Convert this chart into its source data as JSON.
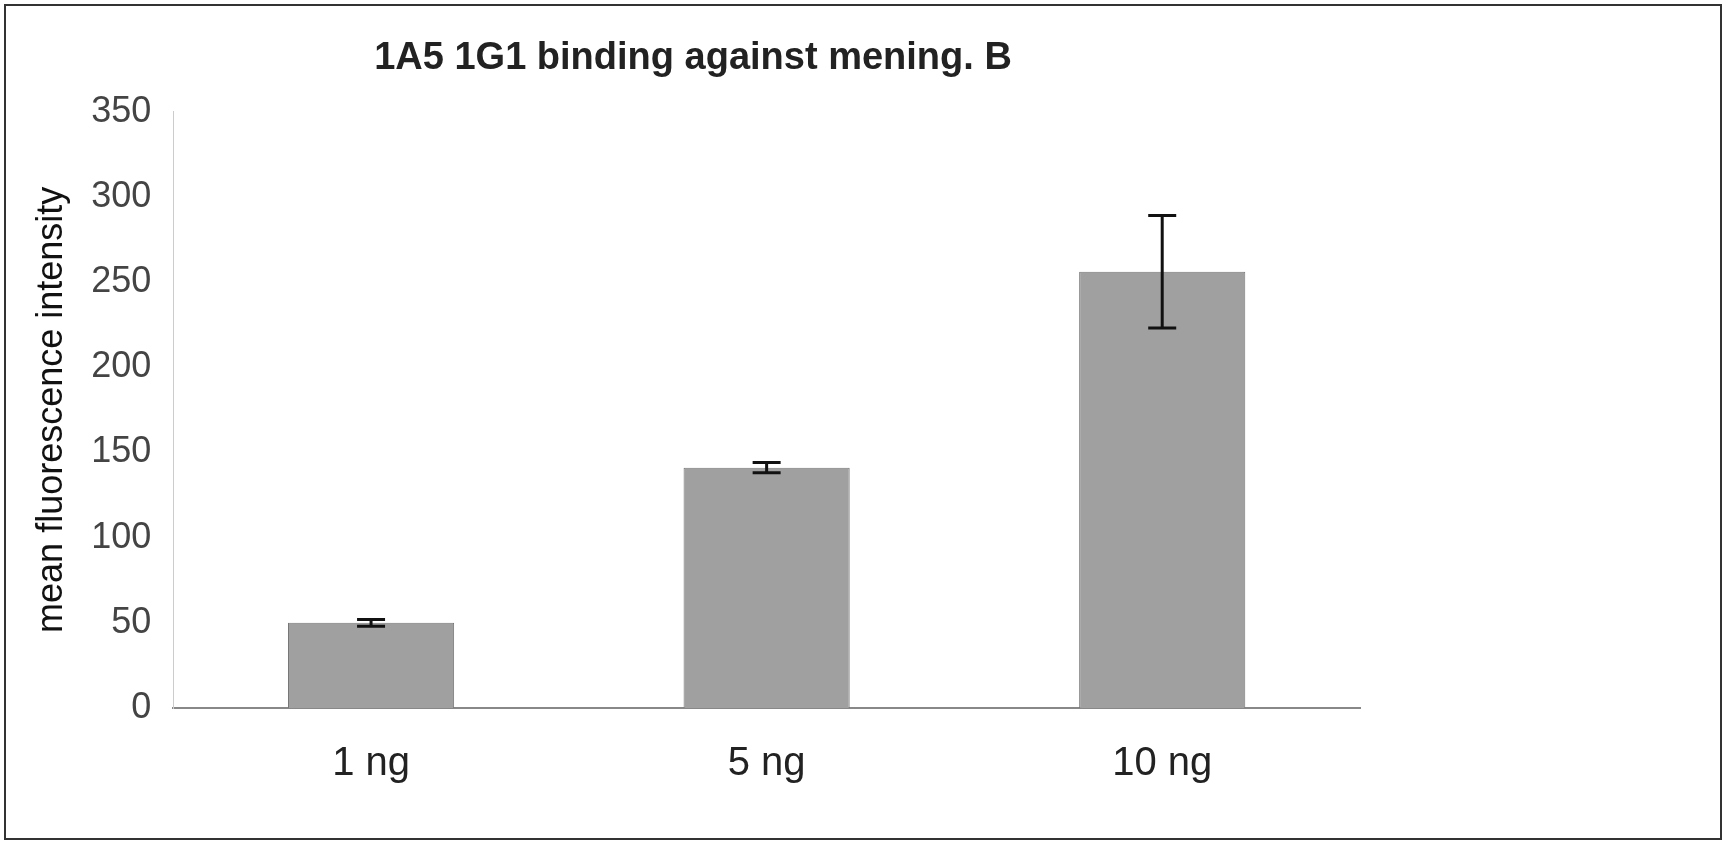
{
  "chart_data": {
    "type": "bar",
    "title": "1A5 1G1 binding against mening. B",
    "ylabel": "mean fluorescence intensity",
    "categories": [
      "1 ng",
      "5 ng",
      "10 ng"
    ],
    "values": [
      50,
      141,
      256
    ],
    "errors": [
      2,
      3,
      33
    ],
    "color": "#a0a0a0",
    "ylim": [
      0,
      350
    ],
    "yticks": [
      0,
      50,
      100,
      150,
      200,
      250,
      300,
      350
    ],
    "grid": false,
    "legend": false
  }
}
